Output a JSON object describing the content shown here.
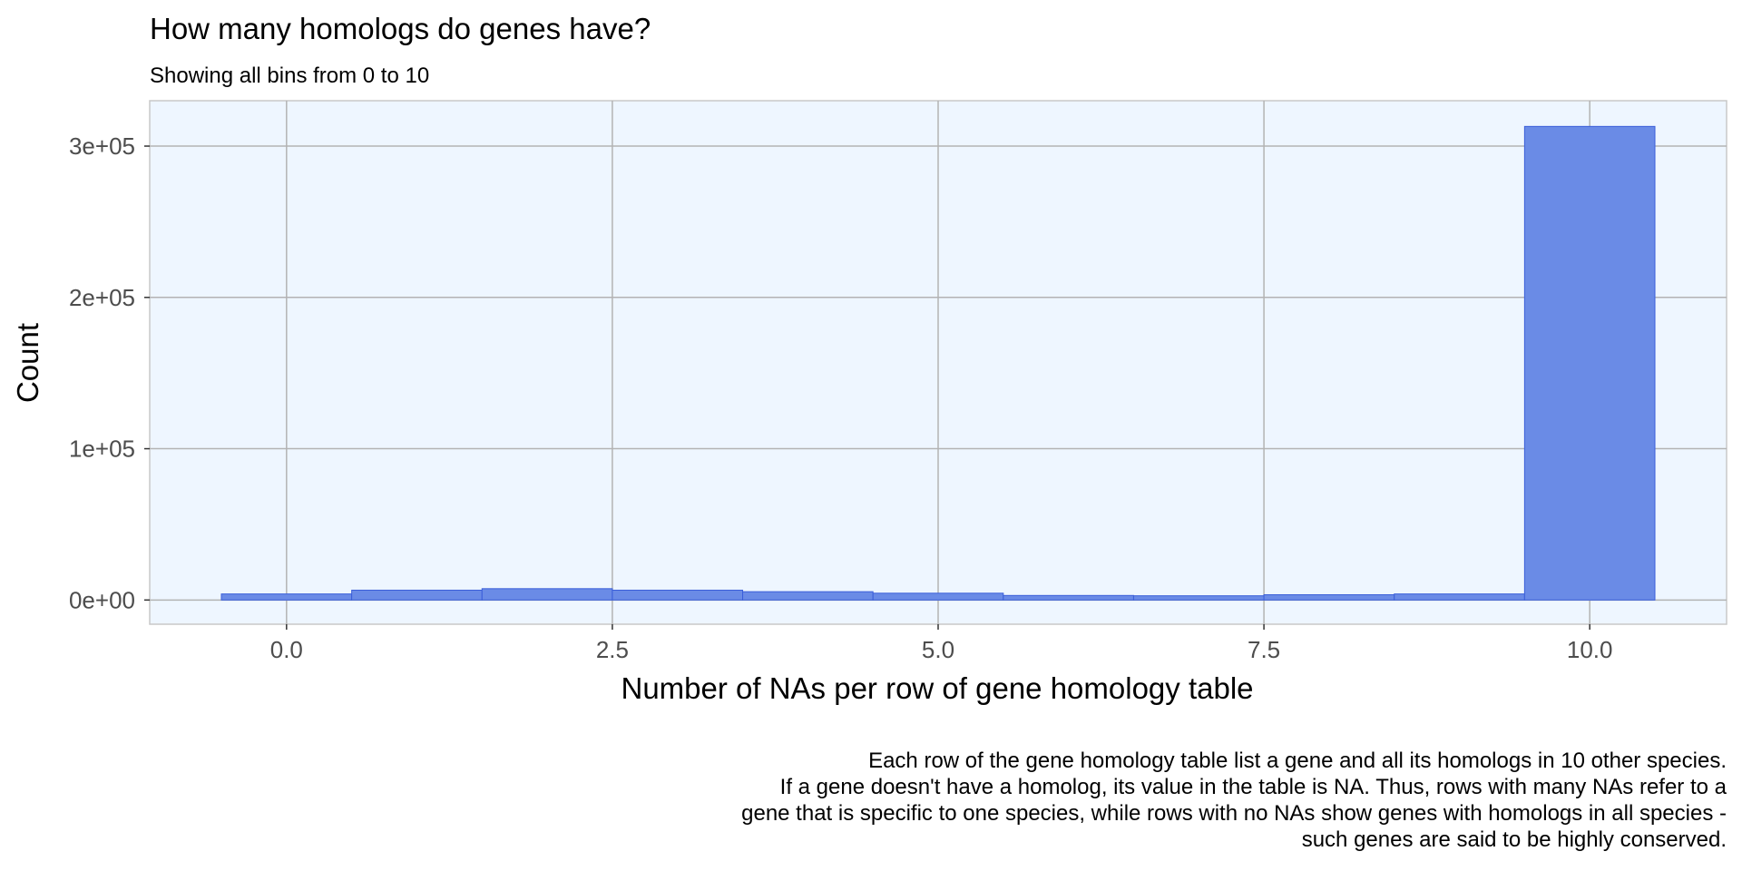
{
  "chart_data": {
    "type": "bar",
    "title": "How many homologs do genes have?",
    "subtitle": "Showing all bins from 0 to 10",
    "xlabel": "Number of NAs per row of gene homology table",
    "ylabel": "Count",
    "caption_lines": [
      "Each row of the gene homology table list a gene and all its homologs in 10 other species.",
      "If a gene doesn't have a homolog, its value in the table is NA. Thus, rows with many NAs refer to a",
      "gene that is specific to one species, while rows with no NAs show genes with homologs in all species -",
      "such genes are said to be highly conserved."
    ],
    "bins": [
      0,
      1,
      2,
      3,
      4,
      5,
      6,
      7,
      8,
      9,
      10
    ],
    "values": [
      4000,
      6500,
      7500,
      6500,
      5500,
      4500,
      3000,
      2800,
      3500,
      4000,
      313000
    ],
    "bin_width": 1,
    "xlim": [
      -1.05,
      11.05
    ],
    "ylim": [
      -16000,
      330000
    ],
    "x_ticks": [
      0,
      2.5,
      5,
      7.5,
      10
    ],
    "x_tick_labels": [
      "0.0",
      "2.5",
      "5.0",
      "7.5",
      "10.0"
    ],
    "y_ticks": [
      0,
      100000,
      200000,
      300000
    ],
    "y_tick_labels": [
      "0e+00",
      "1e+05",
      "2e+05",
      "3e+05"
    ],
    "grid": true,
    "legend": "none",
    "colors": {
      "bar_fill": "#6a8be6",
      "bar_stroke": "#3b5fd9",
      "panel_background": "#eef6ff",
      "panel_border": "#c8c8c8",
      "grid": "#b3b3b3"
    }
  }
}
